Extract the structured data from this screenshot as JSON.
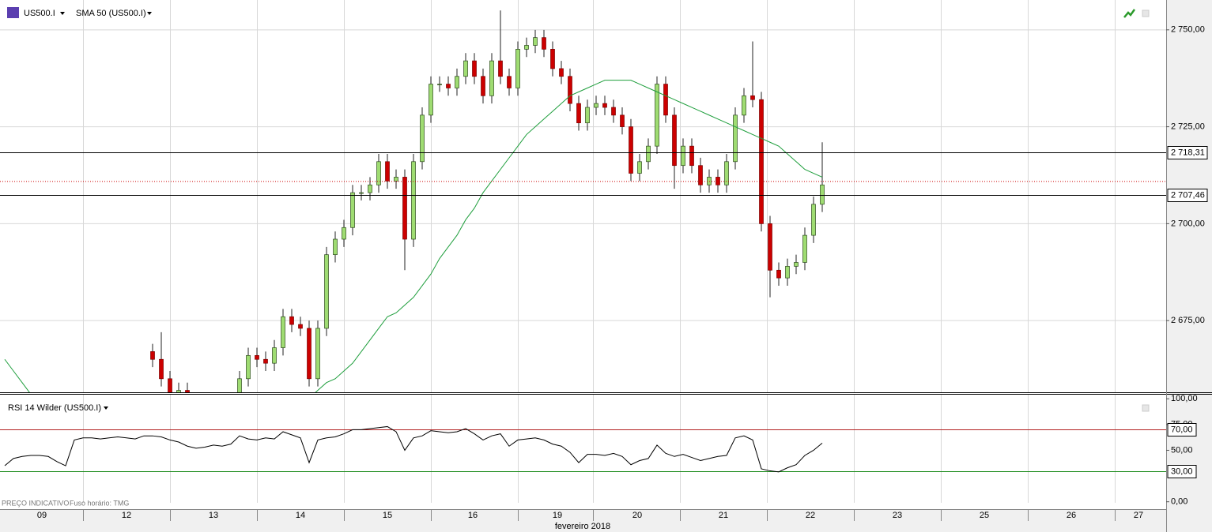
{
  "chart_data": [
    {
      "type": "candlestick",
      "title": "US500.I",
      "categories": [
        null,
        null,
        null,
        null,
        null,
        null,
        null,
        null,
        null,
        null,
        null,
        null,
        null,
        null,
        null,
        null,
        null,
        null,
        null,
        null,
        null,
        null,
        null,
        null,
        null,
        null,
        null,
        null,
        null,
        null,
        null,
        null,
        null,
        null,
        null,
        null,
        null,
        null,
        null,
        null,
        null,
        null,
        null,
        null,
        null,
        null,
        null,
        null,
        null,
        null,
        null,
        null,
        null,
        null,
        null,
        null,
        null,
        null,
        null,
        null,
        null,
        null,
        null,
        null,
        null,
        null,
        null,
        null,
        null,
        null,
        null,
        null,
        null,
        null,
        null,
        null,
        null,
        null,
        null,
        null,
        null,
        null,
        null,
        null,
        null,
        null,
        null,
        null,
        null,
        null,
        null,
        null,
        null,
        null,
        null
      ],
      "open": [
        null,
        null,
        null,
        null,
        null,
        null,
        null,
        null,
        null,
        null,
        null,
        null,
        null,
        null,
        null,
        null,
        null,
        2667,
        2665,
        2660,
        2655,
        2657,
        2650,
        2648,
        2645,
        2646,
        2648,
        2652,
        2660,
        2666,
        2665,
        2664,
        2668,
        2676,
        2674,
        2673,
        2660,
        2673,
        2692,
        2696,
        2699,
        2708,
        2708,
        2710,
        2716,
        2711,
        2712,
        2696,
        2716,
        2728,
        2736,
        2736,
        2735,
        2738,
        2742,
        2738,
        2733,
        2742,
        2738,
        2735,
        2745,
        2746,
        2748,
        2745,
        2740,
        2738,
        2731,
        2726,
        2730,
        2731,
        2730,
        2728,
        2725,
        2713,
        2716,
        2720,
        2736,
        2728,
        2715,
        2720,
        2715,
        2710,
        2712,
        2710,
        2716,
        2728,
        2733,
        2732,
        2700,
        2688,
        2686,
        2689,
        2690,
        2697,
        2705
      ],
      "high": [
        null,
        null,
        null,
        null,
        null,
        null,
        null,
        null,
        null,
        null,
        null,
        null,
        null,
        null,
        null,
        null,
        null,
        2669,
        2672,
        2662,
        2659,
        2659,
        2652,
        2650,
        2648,
        2650,
        2654,
        2662,
        2668,
        2668,
        2667,
        2670,
        2678,
        2678,
        2676,
        2675,
        2675,
        2694,
        2698,
        2701,
        2710,
        2710,
        2712,
        2718,
        2718,
        2714,
        2714,
        2718,
        2730,
        2738,
        2738,
        2738,
        2740,
        2744,
        2744,
        2740,
        2744,
        2755,
        2740,
        2747,
        2748,
        2750,
        2750,
        2747,
        2742,
        2740,
        2733,
        2732,
        2733,
        2733,
        2732,
        2730,
        2727,
        2718,
        2722,
        2738,
        2738,
        2730,
        2722,
        2722,
        2717,
        2714,
        2714,
        2718,
        2730,
        2735,
        2747,
        2734,
        2702,
        2690,
        2691,
        2692,
        2699,
        2707,
        2721
      ],
      "low": [
        null,
        null,
        null,
        null,
        null,
        null,
        null,
        null,
        null,
        null,
        null,
        null,
        null,
        null,
        null,
        null,
        null,
        2663,
        2658,
        2653,
        2653,
        2648,
        2646,
        2643,
        2643,
        2644,
        2646,
        2650,
        2658,
        2663,
        2662,
        2662,
        2666,
        2672,
        2671,
        2658,
        2658,
        2671,
        2690,
        2694,
        2697,
        2706,
        2706,
        2708,
        2709,
        2709,
        2688,
        2694,
        2714,
        2726,
        2734,
        2733,
        2733,
        2736,
        2736,
        2731,
        2731,
        2736,
        2733,
        2733,
        2743,
        2744,
        2743,
        2738,
        2736,
        2729,
        2724,
        2724,
        2728,
        2728,
        2726,
        2723,
        2711,
        2711,
        2714,
        2718,
        2726,
        2709,
        2713,
        2713,
        2708,
        2708,
        2708,
        2708,
        2714,
        2726,
        2730,
        2698,
        2681,
        2684,
        2684,
        2687,
        2688,
        2695,
        2703
      ],
      "close": [
        null,
        null,
        null,
        null,
        null,
        null,
        null,
        null,
        null,
        null,
        null,
        null,
        null,
        null,
        null,
        null,
        null,
        2665,
        2660,
        2655,
        2657,
        2650,
        2648,
        2645,
        2646,
        2648,
        2652,
        2660,
        2666,
        2665,
        2664,
        2668,
        2676,
        2674,
        2673,
        2660,
        2673,
        2692,
        2696,
        2699,
        2708,
        2708,
        2710,
        2716,
        2711,
        2712,
        2696,
        2716,
        2728,
        2736,
        2736,
        2735,
        2738,
        2742,
        2738,
        2733,
        2742,
        2738,
        2735,
        2745,
        2746,
        2748,
        2745,
        2740,
        2738,
        2731,
        2726,
        2730,
        2731,
        2730,
        2728,
        2725,
        2713,
        2716,
        2720,
        2736,
        2728,
        2715,
        2720,
        2715,
        2710,
        2712,
        2710,
        2716,
        2728,
        2733,
        2732,
        2700,
        2688,
        2686,
        2689,
        2690,
        2697,
        2705,
        2710
      ],
      "up_color": "#9fdc72",
      "down_color": "#cc0000",
      "overlays": [
        {
          "name": "SMA 50 (US500.I)",
          "color": "#1e9e3c",
          "values": [
            2665,
            2662,
            2659,
            2656,
            2653,
            2650,
            2648,
            2646,
            2644,
            2642,
            2641,
            2640,
            2639,
            2638,
            2638,
            2637,
            2637,
            2637,
            2637,
            2638,
            2638,
            2639,
            2640,
            2641,
            2642,
            2643,
            2644,
            2645,
            2646,
            2647,
            2648,
            2650,
            2651,
            2652,
            2654,
            2655,
            2657,
            2659,
            2660,
            2662,
            2664,
            2667,
            2670,
            2673,
            2676,
            2677,
            2679,
            2681,
            2684,
            2687,
            2691,
            2694,
            2697,
            2701,
            2704,
            2708,
            2711,
            2714,
            2717,
            2720,
            2723,
            2725,
            2727,
            2729,
            2731,
            2733,
            2734,
            2735,
            2736,
            2737,
            2737,
            2737,
            2737,
            2736,
            2735,
            2734,
            2733,
            2732,
            2731,
            2730,
            2729,
            2728,
            2727,
            2726,
            2725,
            2724,
            2723,
            2722,
            2721,
            2720,
            2718,
            2716,
            2714,
            2713,
            2712
          ]
        }
      ],
      "ylim": [
        2656.5,
        2757.7
      ],
      "yticks": [
        {
          "value": 2750,
          "label": "2 750,00"
        },
        {
          "value": 2725,
          "label": "2 725,00"
        },
        {
          "value": 2700,
          "label": "2 700,00"
        },
        {
          "value": 2675,
          "label": "2 675,00"
        }
      ],
      "levels": [
        {
          "value": 2718.31,
          "label": "2 718,31"
        },
        {
          "value": 2707.46,
          "label": "2 707,46"
        }
      ],
      "last_price": 2710.9,
      "grid": true
    },
    {
      "type": "line",
      "title": "RSI 14 Wilder (US500.I)",
      "color": "#000000",
      "values": [
        35,
        42,
        44,
        45,
        45,
        44,
        39,
        35,
        60,
        62,
        62,
        61,
        62,
        63,
        62,
        61,
        64,
        64,
        63,
        60,
        58,
        54,
        52,
        53,
        55,
        54,
        56,
        64,
        61,
        60,
        62,
        61,
        68,
        65,
        62,
        38,
        60,
        62,
        63,
        66,
        70,
        70,
        71,
        72,
        73,
        68,
        50,
        62,
        64,
        69,
        68,
        67,
        68,
        71,
        66,
        60,
        64,
        66,
        54,
        60,
        61,
        62,
        60,
        56,
        54,
        48,
        38,
        46,
        46,
        45,
        47,
        44,
        36,
        40,
        42,
        55,
        47,
        44,
        46,
        43,
        40,
        42,
        44,
        45,
        62,
        64,
        60,
        32,
        30,
        29,
        33,
        36,
        45,
        50,
        57
      ],
      "ylim": [
        -1,
        104
      ],
      "yticks": [
        {
          "value": 100,
          "label": "100,00"
        },
        {
          "value": 75,
          "label": "75,00"
        },
        {
          "value": 50,
          "label": "50,00"
        },
        {
          "value": 0,
          "label": "0,00"
        }
      ],
      "levels": [
        {
          "value": 70,
          "label": "70,00",
          "color": "#b22222"
        },
        {
          "value": 30,
          "label": "30,00",
          "color": "#1e8c1e"
        }
      ]
    }
  ],
  "time_axis": {
    "days": [
      "09",
      "12",
      "13",
      "14",
      "15",
      "16",
      "19",
      "20",
      "21",
      "22",
      "23",
      "25",
      "26",
      "27"
    ],
    "month": "fevereiro 2018"
  },
  "footer": {
    "source": "PREÇO INDICATIVO",
    "timezone": "Fuso horário: TMG"
  }
}
